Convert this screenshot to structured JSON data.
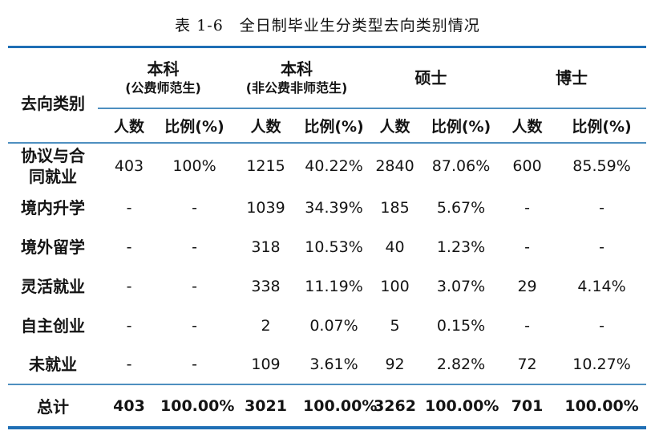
{
  "title": "表 1-6　全日制毕业生分类型去向类别情况",
  "colors": {
    "rule_thick": "#1F6FB5",
    "rule_thin": "#4E8FC0",
    "text": "#141414",
    "background": "#FFFFFF"
  },
  "table": {
    "row_header": "去向类别",
    "col_groups": [
      {
        "line1": "本科",
        "line2": "(公费师范生)"
      },
      {
        "line1": "本科",
        "line2": "(非公费非师范生)"
      },
      {
        "line1": "硕士",
        "line2": ""
      },
      {
        "line1": "博士",
        "line2": ""
      }
    ],
    "sub_headers": [
      "人数",
      "比例(%)"
    ],
    "rows": [
      {
        "label": "协议与合同就业",
        "values": [
          "403",
          "100%",
          "1215",
          "40.22%",
          "2840",
          "87.06%",
          "600",
          "85.59%"
        ]
      },
      {
        "label": "境内升学",
        "values": [
          "-",
          "-",
          "1039",
          "34.39%",
          "185",
          "5.67%",
          "-",
          "-"
        ]
      },
      {
        "label": "境外留学",
        "values": [
          "-",
          "-",
          "318",
          "10.53%",
          "40",
          "1.23%",
          "-",
          "-"
        ]
      },
      {
        "label": "灵活就业",
        "values": [
          "-",
          "-",
          "338",
          "11.19%",
          "100",
          "3.07%",
          "29",
          "4.14%"
        ]
      },
      {
        "label": "自主创业",
        "values": [
          "-",
          "-",
          "2",
          "0.07%",
          "5",
          "0.15%",
          "-",
          "-"
        ]
      },
      {
        "label": "未就业",
        "values": [
          "-",
          "-",
          "109",
          "3.61%",
          "92",
          "2.82%",
          "72",
          "10.27%"
        ]
      }
    ],
    "total": {
      "label": "总计",
      "values": [
        "403",
        "100.00%",
        "3021",
        "100.00%",
        "3262",
        "100.00%",
        "701",
        "100.00%"
      ]
    }
  }
}
